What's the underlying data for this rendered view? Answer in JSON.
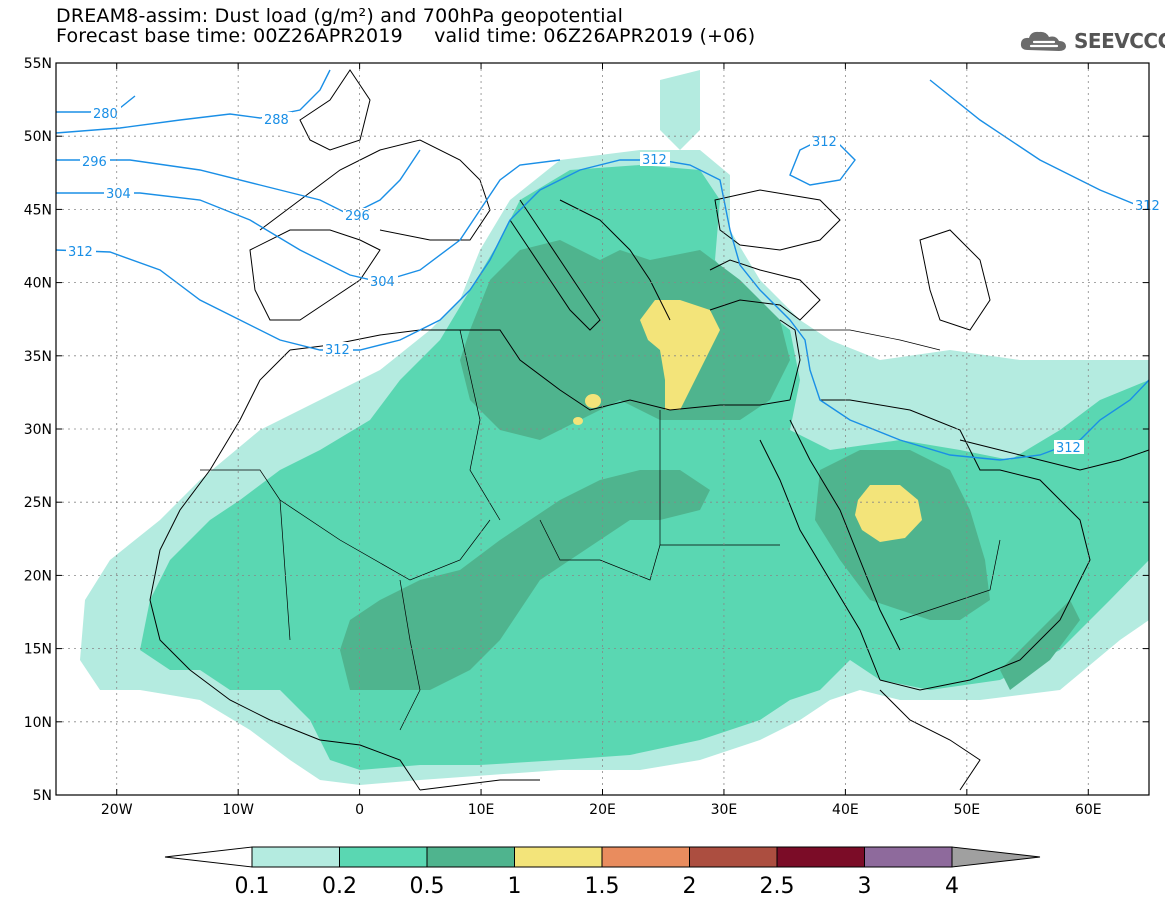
{
  "title": {
    "line1": "DREAM8-assim: Dust load (g/m²) and 700hPa geopotential",
    "line2": "Forecast base time: 00Z26APR2019     valid time: 06Z26APR2019 (+06)"
  },
  "logo": {
    "text": "SEEVCCC",
    "icon": "cloud-icon"
  },
  "axes": {
    "lat_labels": [
      "55N",
      "50N",
      "45N",
      "40N",
      "35N",
      "30N",
      "25N",
      "20N",
      "15N",
      "10N",
      "5N"
    ],
    "lon_labels": [
      "20W",
      "10W",
      "0",
      "10E",
      "20E",
      "30E",
      "40E",
      "50E",
      "60E"
    ],
    "lat_range": [
      5,
      55
    ],
    "lon_range": [
      -25,
      65
    ]
  },
  "contours": {
    "labels": [
      "280",
      "288",
      "296",
      "304",
      "312",
      "296",
      "304",
      "312",
      "312",
      "312",
      "312",
      "312"
    ],
    "color": "#1a8fe6"
  },
  "colorbar": {
    "ticks": [
      "0.1",
      "0.2",
      "0.5",
      "1",
      "1.5",
      "2",
      "2.5",
      "3",
      "4"
    ],
    "colors": [
      "#b4ebe0",
      "#5ad7b2",
      "#4fb48e",
      "#f3e47a",
      "#e98c5e",
      "#ac4e40",
      "#7b0c27",
      "#8e6a9c"
    ],
    "under_color": "#ffffff",
    "over_color": "#a0a0a0"
  },
  "chart_data": {
    "type": "heatmap",
    "title": "DREAM8-assim: Dust load (g/m²) and 700hPa geopotential",
    "variable": "Dust load (g/m²)",
    "overlay": "700hPa geopotential contours (dam)",
    "contour_levels": [
      280,
      288,
      296,
      304,
      312
    ],
    "color_levels": [
      0.1,
      0.2,
      0.5,
      1,
      1.5,
      2,
      2.5,
      3,
      4
    ],
    "xlim": [
      -25,
      65
    ],
    "ylim": [
      5,
      55
    ],
    "max_regions": [
      {
        "name": "Aegean / Eastern Mediterranean",
        "lon": 26,
        "lat": 35,
        "level": "1-1.5"
      },
      {
        "name": "Central Arabian Peninsula",
        "lon": 43,
        "lat": 24.5,
        "level": "1-1.5"
      }
    ]
  }
}
